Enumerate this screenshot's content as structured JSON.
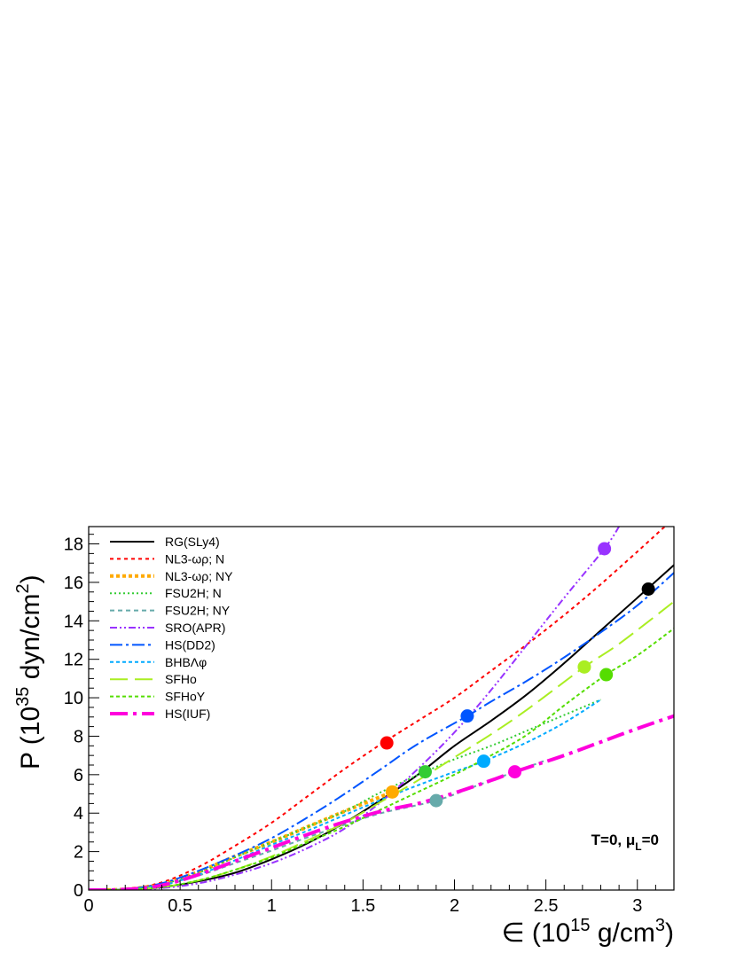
{
  "chart_data": {
    "type": "line",
    "xlabel": "∈ (10^15 g/cm^3)",
    "ylabel": "P (10^35 dyn/cm^2)",
    "xlabel_parts": {
      "pre": "∈ (10",
      "sup1": "15",
      "mid": " g/cm",
      "sup2": "3",
      "post": ")"
    },
    "ylabel_parts": {
      "pre": "P (10",
      "sup1": "35",
      "mid": " dyn/cm",
      "sup2": "2",
      "post": ")"
    },
    "xlim": [
      0,
      3.2
    ],
    "ylim": [
      0,
      18.9
    ],
    "xticks": [
      "0",
      "0.5",
      "1",
      "1.5",
      "2",
      "2.5",
      "3"
    ],
    "yticks": [
      "0",
      "2",
      "4",
      "6",
      "8",
      "10",
      "12",
      "14",
      "16",
      "18"
    ],
    "annotation": {
      "main": "T=0, μ",
      "sub": "L",
      "tail": "=0"
    },
    "legend_position": "top-left",
    "grid": false,
    "series": [
      {
        "name": "RG(SLy4)",
        "color": "#000000",
        "dash": "solid",
        "width": 2,
        "x": [
          0,
          0.2,
          0.4,
          0.6,
          0.8,
          1.0,
          1.2,
          1.4,
          1.6,
          1.8,
          2.0,
          2.2,
          2.4,
          2.6,
          2.8,
          3.0,
          3.2
        ],
        "y": [
          0,
          0.02,
          0.15,
          0.45,
          0.9,
          1.6,
          2.45,
          3.5,
          4.7,
          6.0,
          7.5,
          8.8,
          10.2,
          11.8,
          13.5,
          15.2,
          16.9
        ],
        "marker": [
          3.06,
          15.65
        ]
      },
      {
        "name": "NL3-ωρ; N",
        "color": "#ff0000",
        "dash": "4,4",
        "width": 2,
        "x": [
          0,
          0.2,
          0.4,
          0.6,
          0.8,
          1.0,
          1.2,
          1.4,
          1.6,
          1.8,
          2.0,
          2.2,
          2.4,
          2.6,
          2.8,
          3.0,
          3.15
        ],
        "y": [
          0,
          0.05,
          0.4,
          1.2,
          2.3,
          3.5,
          4.9,
          6.3,
          7.6,
          8.8,
          10.0,
          11.4,
          12.8,
          14.3,
          15.9,
          17.6,
          18.9
        ],
        "marker": [
          1.63,
          7.65
        ]
      },
      {
        "name": "NL3-ωρ; NY",
        "color": "#ffaa00",
        "dash": "4,3",
        "width": 4,
        "x": [
          0,
          0.2,
          0.4,
          0.6,
          0.8,
          1.0,
          1.2,
          1.4,
          1.66
        ],
        "y": [
          0,
          0.04,
          0.3,
          0.95,
          1.75,
          2.5,
          3.3,
          4.1,
          5.1
        ],
        "marker": [
          1.66,
          5.1
        ]
      },
      {
        "name": "FSU2H; N",
        "color": "#33cc33",
        "dash": "2,3",
        "width": 2,
        "x": [
          0,
          0.2,
          0.4,
          0.6,
          0.8,
          1.0,
          1.2,
          1.4,
          1.6,
          1.84,
          2.0,
          2.2,
          2.4,
          2.6,
          2.8
        ],
        "y": [
          0,
          0.04,
          0.3,
          0.9,
          1.7,
          2.5,
          3.3,
          4.1,
          5.1,
          6.15,
          6.8,
          7.5,
          8.3,
          9.1,
          9.9
        ],
        "marker": [
          1.84,
          6.15
        ]
      },
      {
        "name": "FSU2H; NY",
        "color": "#66aaaa",
        "dash": "5,4",
        "width": 2,
        "x": [
          0,
          0.2,
          0.4,
          0.6,
          0.8,
          1.0,
          1.2,
          1.4,
          1.6,
          1.9,
          2.1,
          2.3,
          2.5
        ],
        "y": [
          0,
          0.03,
          0.25,
          0.75,
          1.4,
          2.05,
          2.75,
          3.4,
          4.0,
          4.65,
          5.35,
          6.05,
          6.75
        ],
        "marker": [
          1.9,
          4.65
        ]
      },
      {
        "name": "SRO(APR)",
        "color": "#9933ff",
        "dash": "8,3,2,3,2,3",
        "width": 2,
        "x": [
          0,
          0.2,
          0.4,
          0.6,
          0.8,
          1.0,
          1.2,
          1.4,
          1.6,
          1.8,
          2.0,
          2.2,
          2.4,
          2.6,
          2.82,
          2.9
        ],
        "y": [
          0,
          0.01,
          0.1,
          0.35,
          0.8,
          1.4,
          2.2,
          3.2,
          4.6,
          6.3,
          8.2,
          10.4,
          12.8,
          15.2,
          17.75,
          18.9
        ],
        "marker": [
          2.82,
          17.75
        ]
      },
      {
        "name": "HS(DD2)",
        "color": "#0055ff",
        "dash": "14,4,3,4",
        "width": 2,
        "x": [
          0,
          0.2,
          0.4,
          0.6,
          0.8,
          1.0,
          1.2,
          1.4,
          1.6,
          1.8,
          2.07,
          2.2,
          2.4,
          2.6,
          2.8,
          3.0,
          3.2
        ],
        "y": [
          0,
          0.04,
          0.35,
          1.0,
          1.8,
          2.7,
          3.8,
          5.0,
          6.3,
          7.6,
          9.05,
          9.8,
          10.9,
          12.1,
          13.4,
          14.8,
          16.5
        ],
        "marker": [
          2.07,
          9.05
        ]
      },
      {
        "name": "BHBΛφ",
        "color": "#00aaff",
        "dash": "4,3",
        "width": 2,
        "x": [
          0,
          0.2,
          0.4,
          0.6,
          0.8,
          1.0,
          1.2,
          1.4,
          1.6,
          1.8,
          2.0,
          2.16,
          2.4,
          2.6,
          2.8
        ],
        "y": [
          0,
          0.03,
          0.25,
          0.8,
          1.55,
          2.35,
          3.1,
          3.9,
          4.7,
          5.45,
          6.15,
          6.7,
          7.7,
          8.7,
          9.9
        ],
        "marker": [
          2.16,
          6.7
        ]
      },
      {
        "name": "SFHo",
        "color": "#aaee22",
        "dash": "20,8",
        "width": 2,
        "x": [
          0,
          0.2,
          0.4,
          0.6,
          0.8,
          1.0,
          1.2,
          1.4,
          1.6,
          1.8,
          2.0,
          2.2,
          2.4,
          2.71,
          2.9,
          3.2
        ],
        "y": [
          0,
          0.02,
          0.15,
          0.5,
          1.05,
          1.75,
          2.6,
          3.5,
          4.6,
          5.7,
          6.9,
          8.1,
          9.4,
          11.6,
          12.8,
          15.0
        ],
        "marker": [
          2.71,
          11.6
        ]
      },
      {
        "name": "SFHoY",
        "color": "#55dd00",
        "dash": "4,3",
        "width": 2,
        "x": [
          0,
          0.2,
          0.4,
          0.6,
          0.8,
          1.0,
          1.2,
          1.4,
          1.6,
          1.8,
          2.0,
          2.2,
          2.4,
          2.6,
          2.83,
          3.0,
          3.2
        ],
        "y": [
          0,
          0.02,
          0.15,
          0.5,
          1.05,
          1.7,
          2.5,
          3.3,
          4.2,
          5.1,
          6.0,
          7.0,
          8.1,
          9.6,
          11.2,
          12.2,
          13.6
        ],
        "marker": [
          2.83,
          11.2
        ]
      },
      {
        "name": "HS(IUF)",
        "color": "#ff00dd",
        "dash": "20,6,4,6",
        "width": 4,
        "x": [
          0,
          0.2,
          0.4,
          0.6,
          0.8,
          1.0,
          1.2,
          1.4,
          1.6,
          1.8,
          2.0,
          2.2,
          2.33,
          2.6,
          2.8,
          3.0,
          3.2
        ],
        "y": [
          0,
          0.03,
          0.25,
          0.8,
          1.5,
          2.2,
          2.9,
          3.55,
          4.1,
          4.5,
          5.05,
          5.7,
          6.15,
          7.0,
          7.7,
          8.4,
          9.05
        ],
        "marker": [
          2.33,
          6.15
        ]
      }
    ]
  }
}
